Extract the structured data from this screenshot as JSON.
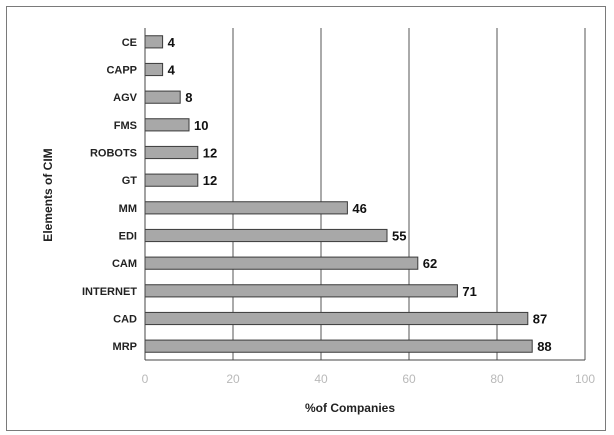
{
  "chart_data": {
    "type": "bar",
    "orientation": "horizontal",
    "categories": [
      "CE",
      "CAPP",
      "AGV",
      "FMS",
      "ROBOTS",
      "GT",
      "MM",
      "EDI",
      "CAM",
      "INTERNET",
      "CAD",
      "MRP"
    ],
    "values": [
      4,
      4,
      8,
      10,
      12,
      12,
      46,
      55,
      62,
      71,
      87,
      88
    ],
    "xlabel": "%of Companies",
    "ylabel": "Elements of CIM",
    "xlim": [
      0,
      100
    ],
    "xticks": [
      "0",
      "20",
      "40",
      "60",
      "80",
      "100"
    ],
    "grid": true,
    "legend": "none",
    "bar_color": "#a8a8a8",
    "bar_edge_color": "#3a3a3a",
    "gridline_color": "#555555"
  }
}
